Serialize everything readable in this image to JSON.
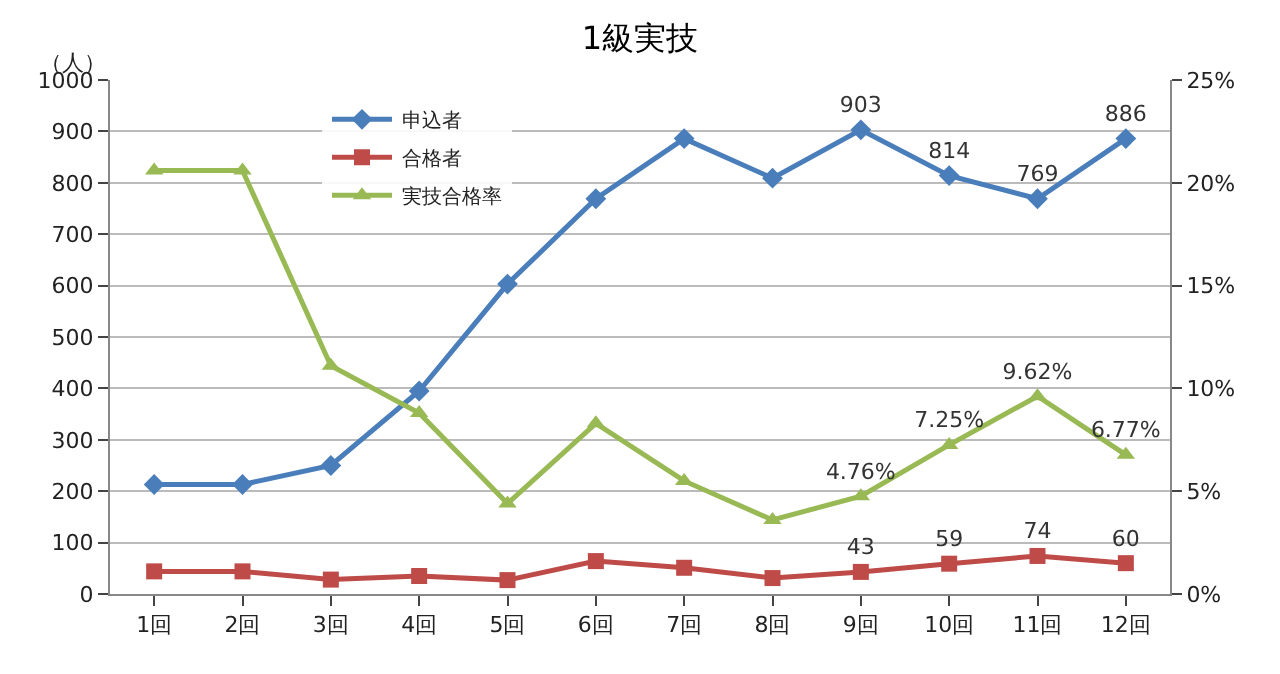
{
  "chart_data": {
    "type": "line",
    "title": "1級実技",
    "ylabel": "（人）",
    "categories": [
      "1回",
      "2回",
      "3回",
      "4回",
      "5回",
      "6回",
      "7回",
      "8回",
      "9回",
      "10回",
      "11回",
      "12回"
    ],
    "series": [
      {
        "name": "申込者",
        "color": "#4a7ebb",
        "marker": "diamond",
        "values": [
          213,
          213,
          250,
          395,
          603,
          769,
          886,
          809,
          903,
          814,
          769,
          886
        ],
        "value_labels": [
          null,
          null,
          null,
          null,
          null,
          null,
          null,
          null,
          "903",
          "814",
          "769",
          "886"
        ]
      },
      {
        "name": "合格者",
        "color": "#be4b48",
        "marker": "square",
        "values": [
          44,
          44,
          28,
          35,
          27,
          64,
          51,
          31,
          43,
          59,
          74,
          60
        ],
        "value_labels": [
          null,
          null,
          null,
          null,
          null,
          null,
          null,
          null,
          "43",
          "59",
          "74",
          "60"
        ]
      },
      {
        "name": "実技合格率",
        "color": "#98b954",
        "marker": "triangle",
        "axis": "y2",
        "values": [
          20.6,
          20.6,
          11.1,
          8.8,
          4.4,
          8.3,
          5.5,
          3.6,
          4.76,
          7.25,
          9.62,
          6.77
        ],
        "value_labels": [
          null,
          null,
          null,
          null,
          null,
          null,
          null,
          null,
          "4.76%",
          "7.25%",
          "9.62%",
          "6.77%"
        ]
      }
    ],
    "ylim": [
      0,
      1000
    ],
    "yticks": [
      0,
      100,
      200,
      300,
      400,
      500,
      600,
      700,
      800,
      900,
      1000
    ],
    "y2lim": [
      0,
      25
    ],
    "y2ticks": [
      {
        "value": 0,
        "label": "0%"
      },
      {
        "value": 5,
        "label": "5%"
      },
      {
        "value": 10,
        "label": "10%"
      },
      {
        "value": 15,
        "label": "15%"
      },
      {
        "value": 20,
        "label": "20%"
      },
      {
        "value": 25,
        "label": "25%"
      }
    ],
    "grid": "y",
    "legend": "top",
    "line_style": "solid"
  }
}
